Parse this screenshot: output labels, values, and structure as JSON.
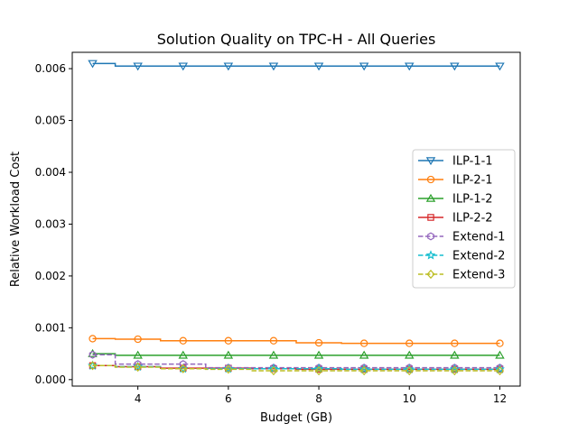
{
  "chart_data": {
    "type": "line",
    "title": "Solution Quality on TPC-H - All Queries",
    "xlabel": "Budget (GB)",
    "ylabel": "Relative Workload Cost",
    "xlim": [
      2.55,
      12.45
    ],
    "ylim": [
      -0.000125,
      0.006315
    ],
    "x_ticks": [
      4,
      6,
      8,
      10,
      12
    ],
    "x_tick_labels": [
      "4",
      "6",
      "8",
      "10",
      "12"
    ],
    "y_ticks": [
      0.0,
      0.001,
      0.002,
      0.003,
      0.004,
      0.005,
      0.006
    ],
    "y_tick_labels": [
      "0.000",
      "0.001",
      "0.002",
      "0.003",
      "0.004",
      "0.005",
      "0.006"
    ],
    "grid": false,
    "legend_position": "center-right",
    "drawstyle": "steps-mid",
    "x": [
      3,
      4,
      5,
      6,
      7,
      8,
      9,
      10,
      11,
      12
    ],
    "series": [
      {
        "name": "ILP-1-1",
        "color": "#1f77b4",
        "marker": "triangle-down",
        "dashed": false,
        "values": [
          0.0061,
          0.00605,
          0.00605,
          0.00605,
          0.00605,
          0.00605,
          0.00605,
          0.00605,
          0.00605,
          0.00605
        ]
      },
      {
        "name": "ILP-2-1",
        "color": "#ff7f0e",
        "marker": "circle",
        "dashed": false,
        "values": [
          0.00079,
          0.00078,
          0.00075,
          0.00075,
          0.00075,
          0.00071,
          0.0007,
          0.0007,
          0.0007,
          0.0007
        ]
      },
      {
        "name": "ILP-1-2",
        "color": "#2ca02c",
        "marker": "triangle-up",
        "dashed": false,
        "values": [
          0.0005,
          0.00047,
          0.00047,
          0.00047,
          0.00047,
          0.00047,
          0.00047,
          0.00047,
          0.00047,
          0.00047
        ]
      },
      {
        "name": "ILP-2-2",
        "color": "#d62728",
        "marker": "square",
        "dashed": false,
        "values": [
          0.00027,
          0.00025,
          0.00022,
          0.00022,
          0.00021,
          0.0002,
          0.0002,
          0.0002,
          0.0002,
          0.0002
        ]
      },
      {
        "name": "Extend-1",
        "color": "#9467bd",
        "marker": "hexagon",
        "dashed": true,
        "values": [
          0.00048,
          0.0003,
          0.0003,
          0.00023,
          0.00023,
          0.00023,
          0.00023,
          0.00023,
          0.00023,
          0.00023
        ]
      },
      {
        "name": "Extend-2",
        "color": "#17becf",
        "marker": "star",
        "dashed": true,
        "values": [
          0.00027,
          0.00025,
          0.00021,
          0.00021,
          0.00021,
          0.00021,
          0.0002,
          0.0002,
          0.0002,
          0.0002
        ]
      },
      {
        "name": "Extend-3",
        "color": "#bcbd22",
        "marker": "diamond",
        "dashed": true,
        "values": [
          0.00027,
          0.00024,
          0.00021,
          0.0002,
          0.00017,
          0.00017,
          0.00017,
          0.00017,
          0.00017,
          0.00017
        ]
      }
    ]
  }
}
